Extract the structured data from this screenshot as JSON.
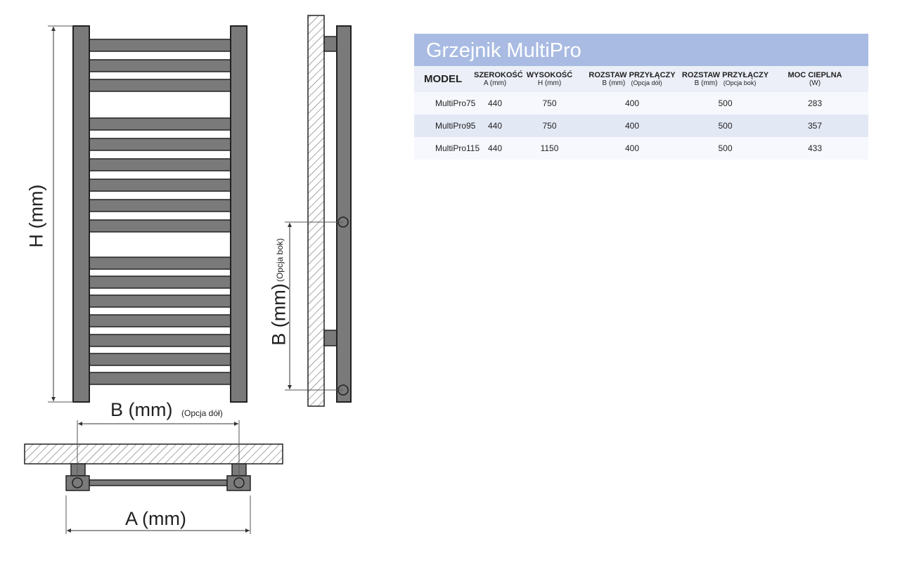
{
  "diagram": {
    "front_label": "H (mm)",
    "side_label": "B (mm)",
    "side_option": "(Opcja bok)",
    "bottom_b_label": "B (mm)",
    "bottom_option": "(Opcja dół)",
    "width_label": "A (mm)",
    "radiator_color": "#7a7a7a"
  },
  "table": {
    "title": "Grzejnik MultiPro",
    "header": {
      "model": "MODEL",
      "width": {
        "title": "SZEROKOŚĆ",
        "unit": "A (mm)"
      },
      "height": {
        "title": "WYSOKOŚĆ",
        "unit": "H (mm)"
      },
      "spacing_bottom": {
        "title": "ROZSTAW PRZYŁĄCZY",
        "unit": "B (mm)",
        "option": "(Opcja dół)"
      },
      "spacing_side": {
        "title": "ROZSTAW PRZYŁĄCZY",
        "unit": "B (mm)",
        "option": "(Opcja bok)"
      },
      "power": {
        "title": "MOC CIEPLNA",
        "unit": "(W)"
      }
    },
    "rows": [
      {
        "model": "MultiPro75",
        "a": "440",
        "h": "750",
        "b_bottom": "400",
        "b_side": "500",
        "power": "283"
      },
      {
        "model": "MultiPro95",
        "a": "440",
        "h": "750",
        "b_bottom": "400",
        "b_side": "500",
        "power": "357"
      },
      {
        "model": "MultiPro115",
        "a": "440",
        "h": "1150",
        "b_bottom": "400",
        "b_side": "500",
        "power": "433"
      }
    ]
  }
}
